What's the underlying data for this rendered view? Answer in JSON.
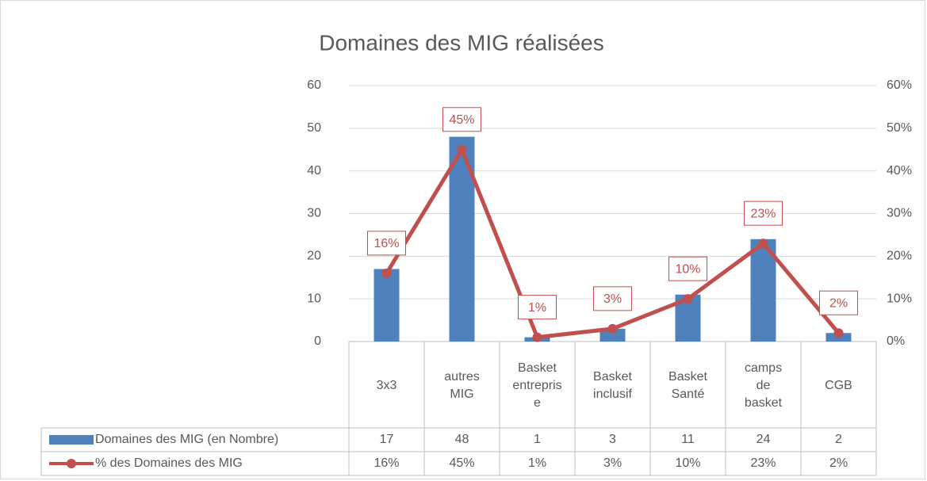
{
  "chart_data": {
    "type": "bar-line",
    "title": "Domaines des MIG réalisées",
    "categories": [
      "3x3",
      "autres MIG",
      "Basket entreprise",
      "Basket inclusif",
      "Basket Santé",
      "camps de basket",
      "CGB"
    ],
    "series": [
      {
        "name": "Domaines des MIG (en Nombre)",
        "type": "bar",
        "color": "#4f81bd",
        "values": [
          17,
          48,
          1,
          3,
          11,
          24,
          2
        ]
      },
      {
        "name": "% des Domaines des MIG",
        "type": "line",
        "axis": "y2",
        "color": "#c0504d",
        "values": [
          16,
          45,
          1,
          3,
          10,
          23,
          2
        ],
        "value_labels": [
          "16%",
          "45%",
          "1%",
          "3%",
          "10%",
          "23%",
          "2%"
        ]
      }
    ],
    "ylim": [
      0,
      60
    ],
    "yticks": [
      0,
      10,
      20,
      30,
      40,
      50,
      60
    ],
    "y2lim": [
      0,
      60
    ],
    "y2ticks": [
      {
        "value": 0,
        "label": "0%"
      },
      {
        "value": 10,
        "label": "10%"
      },
      {
        "value": 20,
        "label": "20%"
      },
      {
        "value": 30,
        "label": "30%"
      },
      {
        "value": 40,
        "label": "40%"
      },
      {
        "value": 50,
        "label": "50%"
      },
      {
        "value": 60,
        "label": "60%"
      }
    ],
    "grid": true
  }
}
